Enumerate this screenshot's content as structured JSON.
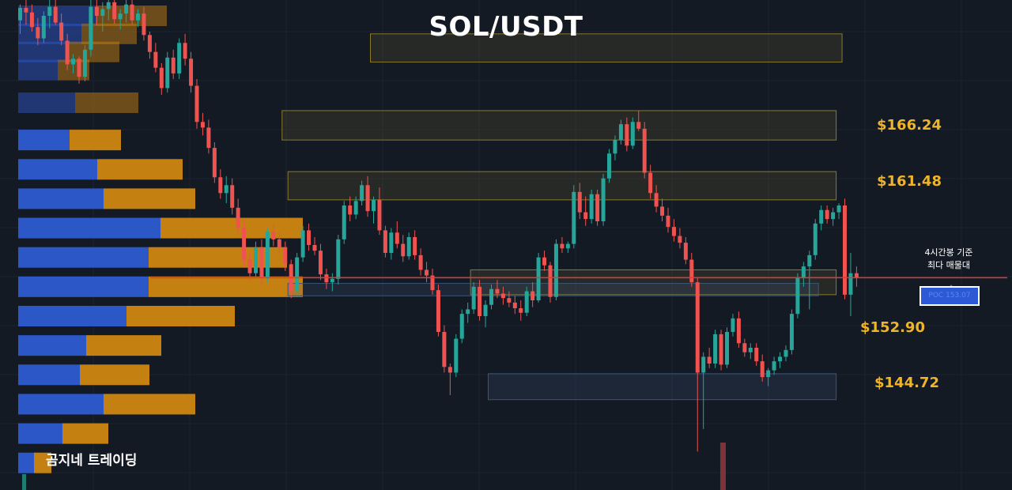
{
  "title": "SOL/USDT",
  "brand": "곰지네 트레이딩",
  "note_line1": "4시간봉 기준",
  "note_line2": "최다 매물대",
  "poc_label": "POC 153.07",
  "colors": {
    "up": "#26a69a",
    "down": "#ef5350",
    "price_line": "#e53935",
    "level_text": "#f0b429",
    "buy_volume": "#2e5cd6",
    "sell_volume": "#d4890f"
  },
  "levels": [
    {
      "label": "$166.24",
      "price": 166.24
    },
    {
      "label": "$161.48",
      "price": 161.48
    },
    {
      "label": "$152.90",
      "price": 152.9
    },
    {
      "label": "$144.72",
      "price": 144.72
    }
  ],
  "chart_data": {
    "type": "candlestick",
    "title": "SOL/USDT",
    "current_price": 153.4,
    "poc_price": 153.07,
    "y_range": [
      134.6,
      178.0
    ],
    "candles": [
      [
        176.2,
        177.6,
        175.0,
        177.3
      ],
      [
        177.3,
        178.0,
        175.8,
        176.9
      ],
      [
        176.9,
        177.6,
        175.2,
        175.6
      ],
      [
        175.6,
        176.4,
        174.0,
        174.6
      ],
      [
        174.6,
        177.0,
        174.2,
        176.6
      ],
      [
        176.6,
        178.0,
        175.5,
        177.4
      ],
      [
        177.4,
        178.0,
        175.8,
        176.0
      ],
      [
        176.0,
        176.8,
        174.0,
        174.4
      ],
      [
        174.4,
        175.0,
        171.8,
        172.3
      ],
      [
        172.3,
        173.2,
        171.5,
        172.8
      ],
      [
        172.8,
        173.0,
        170.6,
        171.2
      ],
      [
        171.2,
        174.0,
        170.8,
        173.6
      ],
      [
        173.6,
        178.0,
        173.0,
        177.4
      ],
      [
        177.4,
        178.0,
        175.8,
        176.6
      ],
      [
        176.6,
        177.8,
        175.2,
        177.2
      ],
      [
        177.2,
        178.0,
        176.2,
        177.8
      ],
      [
        177.8,
        178.0,
        175.9,
        176.3
      ],
      [
        176.3,
        177.2,
        175.4,
        176.8
      ],
      [
        176.8,
        178.0,
        176.0,
        177.6
      ],
      [
        177.6,
        178.0,
        175.8,
        176.2
      ],
      [
        176.2,
        177.2,
        175.6,
        176.8
      ],
      [
        176.8,
        177.4,
        174.4,
        174.9
      ],
      [
        174.9,
        175.2,
        172.8,
        173.4
      ],
      [
        173.4,
        174.2,
        171.6,
        172.0
      ],
      [
        172.0,
        172.4,
        169.6,
        170.2
      ],
      [
        170.2,
        173.4,
        169.8,
        172.9
      ],
      [
        172.9,
        173.6,
        171.0,
        171.5
      ],
      [
        171.5,
        174.6,
        171.0,
        174.2
      ],
      [
        174.2,
        175.0,
        172.2,
        172.8
      ],
      [
        172.8,
        173.4,
        169.8,
        170.4
      ],
      [
        170.4,
        171.0,
        166.6,
        167.2
      ],
      [
        167.2,
        168.0,
        166.0,
        166.7
      ],
      [
        166.7,
        167.4,
        164.4,
        164.9
      ],
      [
        164.9,
        165.4,
        161.8,
        162.3
      ],
      [
        162.3,
        163.0,
        160.4,
        160.9
      ],
      [
        160.9,
        162.4,
        160.0,
        161.6
      ],
      [
        161.6,
        162.2,
        159.0,
        159.6
      ],
      [
        159.6,
        160.4,
        157.2,
        157.8
      ],
      [
        157.8,
        158.6,
        154.4,
        155.0
      ],
      [
        155.0,
        155.6,
        153.2,
        153.8
      ],
      [
        153.8,
        156.6,
        153.4,
        156.1
      ],
      [
        156.1,
        156.8,
        152.8,
        153.4
      ],
      [
        153.4,
        157.8,
        153.0,
        157.5
      ],
      [
        157.5,
        158.2,
        156.2,
        156.8
      ],
      [
        156.8,
        157.4,
        155.6,
        156.1
      ],
      [
        156.1,
        156.6,
        154.0,
        154.6
      ],
      [
        154.6,
        155.0,
        151.6,
        152.2
      ],
      [
        152.2,
        155.6,
        151.8,
        155.2
      ],
      [
        155.2,
        158.0,
        154.8,
        157.6
      ],
      [
        157.6,
        158.2,
        155.8,
        156.3
      ],
      [
        156.3,
        157.0,
        155.4,
        155.8
      ],
      [
        155.8,
        156.4,
        153.2,
        153.7
      ],
      [
        153.7,
        154.2,
        152.4,
        153.0
      ],
      [
        153.0,
        153.8,
        152.2,
        153.3
      ],
      [
        153.3,
        157.2,
        152.8,
        156.8
      ],
      [
        156.8,
        160.2,
        156.4,
        159.8
      ],
      [
        159.8,
        160.6,
        158.4,
        159.0
      ],
      [
        159.0,
        160.6,
        158.6,
        160.2
      ],
      [
        160.2,
        162.0,
        159.8,
        161.6
      ],
      [
        161.6,
        162.4,
        158.8,
        159.3
      ],
      [
        159.3,
        160.6,
        158.2,
        160.3
      ],
      [
        160.3,
        161.4,
        157.2,
        157.6
      ],
      [
        157.6,
        158.0,
        155.2,
        155.6
      ],
      [
        155.6,
        157.8,
        155.0,
        157.4
      ],
      [
        157.4,
        158.4,
        156.0,
        156.4
      ],
      [
        156.4,
        157.2,
        154.8,
        155.3
      ],
      [
        155.3,
        157.4,
        155.0,
        157.0
      ],
      [
        157.0,
        157.6,
        155.0,
        155.4
      ],
      [
        155.4,
        156.0,
        153.6,
        154.1
      ],
      [
        154.1,
        154.8,
        153.0,
        153.6
      ],
      [
        153.6,
        154.2,
        151.9,
        152.3
      ],
      [
        152.3,
        152.8,
        148.2,
        148.6
      ],
      [
        148.6,
        149.2,
        145.0,
        145.5
      ],
      [
        145.5,
        145.8,
        143.0,
        145.0
      ],
      [
        145.0,
        148.4,
        144.6,
        148.0
      ],
      [
        148.0,
        150.6,
        147.6,
        150.2
      ],
      [
        150.2,
        151.2,
        149.4,
        150.6
      ],
      [
        150.6,
        153.0,
        150.2,
        152.6
      ],
      [
        152.6,
        153.2,
        149.6,
        150.0
      ],
      [
        150.0,
        151.4,
        149.0,
        151.0
      ],
      [
        151.0,
        152.8,
        150.6,
        152.4
      ],
      [
        152.4,
        153.2,
        151.6,
        152.0
      ],
      [
        152.0,
        152.6,
        151.0,
        151.6
      ],
      [
        151.6,
        152.2,
        150.8,
        151.2
      ],
      [
        151.2,
        151.8,
        150.2,
        150.7
      ],
      [
        150.7,
        151.4,
        149.6,
        150.3
      ],
      [
        150.3,
        152.6,
        150.0,
        152.2
      ],
      [
        152.2,
        153.0,
        150.8,
        151.4
      ],
      [
        151.4,
        155.6,
        151.2,
        155.2
      ],
      [
        155.2,
        155.8,
        154.0,
        154.5
      ],
      [
        154.5,
        154.8,
        151.2,
        151.7
      ],
      [
        151.7,
        156.8,
        151.4,
        156.4
      ],
      [
        156.4,
        157.0,
        155.6,
        156.0
      ],
      [
        156.0,
        156.6,
        155.6,
        156.4
      ],
      [
        156.4,
        161.6,
        156.0,
        161.0
      ],
      [
        161.0,
        161.8,
        158.6,
        159.2
      ],
      [
        159.2,
        160.6,
        158.0,
        158.6
      ],
      [
        158.6,
        161.2,
        158.2,
        160.8
      ],
      [
        160.8,
        161.2,
        158.0,
        158.4
      ],
      [
        158.4,
        162.6,
        158.0,
        162.2
      ],
      [
        162.2,
        164.8,
        161.8,
        164.4
      ],
      [
        164.4,
        166.0,
        163.8,
        165.6
      ],
      [
        165.6,
        167.4,
        165.2,
        167.0
      ],
      [
        167.0,
        167.6,
        164.6,
        165.1
      ],
      [
        165.1,
        167.6,
        164.8,
        167.2
      ],
      [
        167.2,
        168.2,
        166.4,
        166.6
      ],
      [
        166.6,
        167.2,
        162.2,
        162.7
      ],
      [
        162.7,
        163.4,
        160.4,
        160.9
      ],
      [
        160.9,
        161.6,
        159.2,
        159.7
      ],
      [
        159.7,
        160.4,
        158.4,
        158.9
      ],
      [
        158.9,
        159.6,
        157.4,
        157.9
      ],
      [
        157.9,
        158.6,
        156.6,
        157.1
      ],
      [
        157.1,
        157.8,
        156.0,
        156.5
      ],
      [
        156.5,
        157.0,
        154.6,
        155.0
      ],
      [
        155.0,
        155.6,
        152.6,
        153.0
      ],
      [
        153.0,
        153.4,
        138.0,
        145.0
      ],
      [
        145.0,
        146.8,
        140.0,
        146.4
      ],
      [
        146.4,
        147.2,
        145.4,
        145.8
      ],
      [
        145.8,
        148.8,
        145.4,
        148.4
      ],
      [
        148.4,
        148.8,
        145.2,
        145.7
      ],
      [
        145.7,
        149.0,
        145.4,
        148.6
      ],
      [
        148.6,
        150.2,
        148.2,
        149.8
      ],
      [
        149.8,
        150.4,
        147.2,
        147.6
      ],
      [
        147.6,
        148.0,
        146.4,
        146.8
      ],
      [
        146.8,
        147.6,
        146.2,
        147.2
      ],
      [
        147.2,
        147.6,
        145.6,
        146.0
      ],
      [
        146.0,
        146.6,
        144.2,
        144.6
      ],
      [
        144.6,
        145.4,
        143.8,
        145.2
      ],
      [
        145.2,
        146.4,
        144.8,
        146.0
      ],
      [
        146.0,
        146.8,
        145.4,
        146.4
      ],
      [
        146.4,
        147.4,
        146.0,
        147.0
      ],
      [
        147.0,
        150.6,
        146.6,
        150.2
      ],
      [
        150.2,
        153.8,
        149.8,
        153.4
      ],
      [
        153.4,
        154.8,
        152.6,
        154.4
      ],
      [
        154.4,
        155.8,
        150.6,
        155.4
      ],
      [
        155.4,
        158.6,
        155.0,
        158.2
      ],
      [
        158.2,
        159.8,
        157.6,
        159.4
      ],
      [
        159.4,
        159.8,
        158.2,
        158.6
      ],
      [
        158.6,
        159.6,
        158.0,
        159.2
      ],
      [
        159.2,
        160.0,
        158.6,
        159.8
      ],
      [
        159.8,
        160.4,
        151.5,
        151.9
      ],
      [
        151.9,
        155.6,
        150.0,
        153.8
      ],
      [
        153.8,
        154.4,
        152.6,
        153.4
      ]
    ],
    "volume_profile": [
      {
        "price": 176.6,
        "buy": 98,
        "sell": 90
      },
      {
        "price": 175.0,
        "buy": 80,
        "sell": 70
      },
      {
        "price": 173.4,
        "buy": 60,
        "sell": 68
      },
      {
        "price": 171.8,
        "buy": 50,
        "sell": 40
      },
      {
        "price": 168.9,
        "buy": 72,
        "sell": 80
      },
      {
        "price": 165.6,
        "buy": 65,
        "sell": 65
      },
      {
        "price": 163.0,
        "buy": 100,
        "sell": 108
      },
      {
        "price": 160.4,
        "buy": 108,
        "sell": 116
      },
      {
        "price": 157.8,
        "buy": 180,
        "sell": 180
      },
      {
        "price": 155.2,
        "buy": 165,
        "sell": 175
      },
      {
        "price": 152.6,
        "buy": 165,
        "sell": 195
      },
      {
        "price": 150.0,
        "buy": 137,
        "sell": 137
      },
      {
        "price": 147.4,
        "buy": 86,
        "sell": 95
      },
      {
        "price": 144.8,
        "buy": 78,
        "sell": 88
      },
      {
        "price": 142.2,
        "buy": 108,
        "sell": 116
      },
      {
        "price": 139.6,
        "buy": 56,
        "sell": 58
      },
      {
        "price": 137.0,
        "buy": 20,
        "sell": 22
      }
    ],
    "supply_demand_zones": [
      {
        "from_candle": 45,
        "to_candle": 138,
        "top": 168.2,
        "bottom": 165.6,
        "style": "yellow"
      },
      {
        "from_candle": 46,
        "to_candle": 138,
        "top": 162.8,
        "bottom": 160.3,
        "style": "yellow"
      },
      {
        "from_candle": 60,
        "to_candle": 139,
        "top": 175.0,
        "bottom": 172.5,
        "style": "yellow"
      },
      {
        "from_candle": 77,
        "to_candle": 138,
        "top": 154.1,
        "bottom": 151.9,
        "style": "yellow"
      },
      {
        "from_candle": 80,
        "to_candle": 138,
        "top": 144.9,
        "bottom": 142.6,
        "style": "blue"
      },
      {
        "from_candle": 46,
        "to_candle": 135,
        "top": 152.9,
        "bottom": 151.8,
        "style": "blue"
      }
    ]
  }
}
